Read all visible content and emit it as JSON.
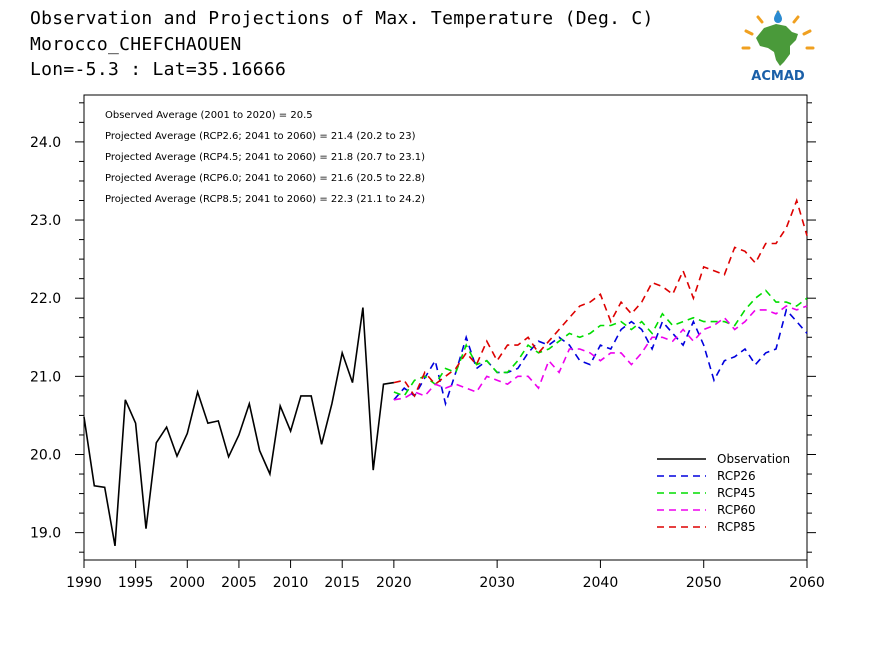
{
  "header": {
    "title_line1": "Observation and Projections of Max. Temperature (Deg. C)",
    "title_line2": "Morocco_CHEFCHAOUEN",
    "title_line3": "Lon=-5.3 : Lat=35.16666"
  },
  "logo": {
    "text": "ACMAD",
    "icon": "africa-map-logo",
    "colors": {
      "map": "#4a9a3a",
      "sun": "#f0a020",
      "text": "#1a5fa8",
      "drop": "#2a8ad0"
    }
  },
  "annotations": [
    "Observed Average (2001 to 2020) = 20.5",
    "Projected Average (RCP2.6; 2041 to 2060) = 21.4 (20.2 to 23)",
    "Projected Average (RCP4.5; 2041 to 2060) = 21.8 (20.7 to 23.1)",
    "Projected Average (RCP6.0; 2041 to 2060) = 21.6 (20.5 to 22.8)",
    "Projected Average (RCP8.5; 2041 to 2060) = 22.3 (21.1 to 24.2)"
  ],
  "chart_data": {
    "type": "line",
    "title": "Observation and Projections of Max. Temperature (Deg. C)",
    "xlim": [
      1990,
      2060
    ],
    "ylim": [
      18.65,
      24.6
    ],
    "y_ticks": [
      "19.0",
      "20.0",
      "21.0",
      "22.0",
      "23.0",
      "24.0"
    ],
    "x_ticks": [
      "1990",
      "1995",
      "2000",
      "2005",
      "2010",
      "2015",
      "2020",
      "2030",
      "2040",
      "2050",
      "2060"
    ],
    "x_tick_values": [
      1990,
      1995,
      2000,
      2005,
      2010,
      2015,
      2020,
      2030,
      2040,
      2050,
      2060
    ],
    "legend_position": "bottom-right",
    "series": [
      {
        "name": "Observation",
        "color": "#000000",
        "dash": "solid",
        "x": [
          1990,
          1991,
          1992,
          1993,
          1994,
          1995,
          1996,
          1997,
          1998,
          1999,
          2000,
          2001,
          2002,
          2003,
          2004,
          2005,
          2006,
          2007,
          2008,
          2009,
          2010,
          2011,
          2012,
          2013,
          2014,
          2015,
          2016,
          2017,
          2018,
          2019,
          2020
        ],
        "values": [
          20.48,
          19.6,
          19.58,
          18.83,
          20.7,
          20.4,
          19.05,
          20.15,
          20.35,
          19.98,
          20.27,
          20.8,
          20.4,
          20.43,
          19.97,
          20.25,
          20.65,
          20.05,
          19.75,
          20.62,
          20.3,
          20.75,
          20.75,
          20.13,
          20.65,
          21.3,
          20.92,
          21.88,
          19.8,
          20.9,
          20.92
        ]
      },
      {
        "name": "RCP26",
        "color": "#0000dd",
        "dash": "dashed",
        "x": [
          2020,
          2021,
          2022,
          2023,
          2024,
          2025,
          2026,
          2027,
          2028,
          2029,
          2030,
          2031,
          2032,
          2033,
          2034,
          2035,
          2036,
          2037,
          2038,
          2039,
          2040,
          2041,
          2042,
          2043,
          2044,
          2045,
          2046,
          2047,
          2048,
          2049,
          2050,
          2051,
          2052,
          2053,
          2054,
          2055,
          2056,
          2057,
          2058,
          2059,
          2060
        ],
        "values": [
          20.7,
          20.85,
          20.75,
          20.98,
          21.2,
          20.65,
          21.05,
          21.5,
          21.1,
          21.2,
          21.05,
          21.05,
          21.1,
          21.3,
          21.45,
          21.4,
          21.5,
          21.4,
          21.2,
          21.15,
          21.4,
          21.35,
          21.6,
          21.7,
          21.6,
          21.35,
          21.7,
          21.55,
          21.4,
          21.7,
          21.4,
          20.95,
          21.2,
          21.25,
          21.35,
          21.15,
          21.3,
          21.35,
          21.85,
          21.7,
          21.55
        ]
      },
      {
        "name": "RCP45",
        "color": "#00dd00",
        "dash": "dashed",
        "x": [
          2020,
          2021,
          2022,
          2023,
          2024,
          2025,
          2026,
          2027,
          2028,
          2029,
          2030,
          2031,
          2032,
          2033,
          2034,
          2035,
          2036,
          2037,
          2038,
          2039,
          2040,
          2041,
          2042,
          2043,
          2044,
          2045,
          2046,
          2047,
          2048,
          2049,
          2050,
          2051,
          2052,
          2053,
          2054,
          2055,
          2056,
          2057,
          2058,
          2059,
          2060
        ],
        "values": [
          20.8,
          20.75,
          20.95,
          21.0,
          20.9,
          21.1,
          21.05,
          21.4,
          21.15,
          21.2,
          21.05,
          21.05,
          21.2,
          21.4,
          21.3,
          21.35,
          21.45,
          21.55,
          21.5,
          21.55,
          21.65,
          21.65,
          21.7,
          21.6,
          21.7,
          21.55,
          21.8,
          21.65,
          21.7,
          21.75,
          21.7,
          21.7,
          21.7,
          21.65,
          21.85,
          22.0,
          22.1,
          21.95,
          21.95,
          21.9,
          22.0
        ]
      },
      {
        "name": "RCP60",
        "color": "#ee00ee",
        "dash": "dashed",
        "x": [
          2020,
          2021,
          2022,
          2023,
          2024,
          2025,
          2026,
          2027,
          2028,
          2029,
          2030,
          2031,
          2032,
          2033,
          2034,
          2035,
          2036,
          2037,
          2038,
          2039,
          2040,
          2041,
          2042,
          2043,
          2044,
          2045,
          2046,
          2047,
          2048,
          2049,
          2050,
          2051,
          2052,
          2053,
          2054,
          2055,
          2056,
          2057,
          2058,
          2059,
          2060
        ],
        "values": [
          20.7,
          20.72,
          20.8,
          20.75,
          20.9,
          20.85,
          20.9,
          20.85,
          20.8,
          21.0,
          20.95,
          20.9,
          21.0,
          21.0,
          20.85,
          21.2,
          21.05,
          21.35,
          21.35,
          21.3,
          21.2,
          21.3,
          21.3,
          21.15,
          21.3,
          21.5,
          21.5,
          21.45,
          21.6,
          21.45,
          21.6,
          21.65,
          21.75,
          21.6,
          21.7,
          21.85,
          21.85,
          21.8,
          21.9,
          21.85,
          21.9
        ]
      },
      {
        "name": "RCP85",
        "color": "#dd0000",
        "dash": "dashed",
        "x": [
          2020,
          2021,
          2022,
          2023,
          2024,
          2025,
          2026,
          2027,
          2028,
          2029,
          2030,
          2031,
          2032,
          2033,
          2034,
          2035,
          2036,
          2037,
          2038,
          2039,
          2040,
          2041,
          2042,
          2043,
          2044,
          2045,
          2046,
          2047,
          2048,
          2049,
          2050,
          2051,
          2052,
          2053,
          2054,
          2055,
          2056,
          2057,
          2058,
          2059,
          2060
        ],
        "values": [
          20.92,
          20.95,
          20.75,
          21.05,
          20.9,
          21.0,
          21.1,
          21.3,
          21.15,
          21.45,
          21.2,
          21.4,
          21.4,
          21.5,
          21.3,
          21.45,
          21.6,
          21.75,
          21.9,
          21.95,
          22.05,
          21.7,
          21.95,
          21.8,
          21.95,
          22.2,
          22.15,
          22.05,
          22.35,
          22.0,
          22.4,
          22.35,
          22.3,
          22.65,
          22.6,
          22.45,
          22.7,
          22.7,
          22.9,
          23.25,
          22.8
        ]
      }
    ]
  }
}
